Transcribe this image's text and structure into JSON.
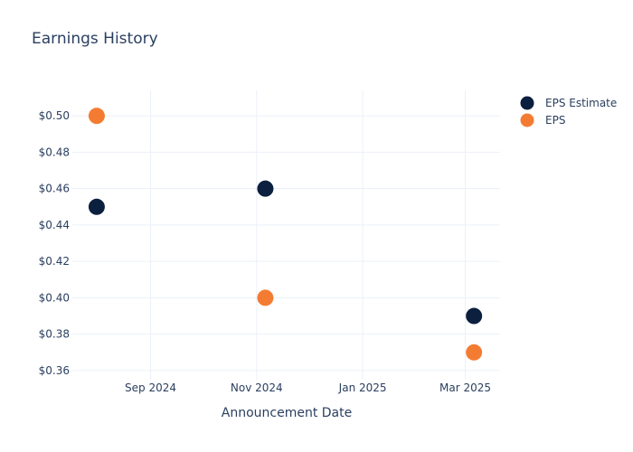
{
  "chart_data": {
    "type": "scatter",
    "title": "Earnings History",
    "xlabel": "Announcement Date",
    "ylabel": "",
    "x_tick_labels": [
      "Sep 2024",
      "Nov 2024",
      "Jan 2025",
      "Mar 2025"
    ],
    "x_tick_dates": [
      "2024-09-01",
      "2024-11-01",
      "2025-01-01",
      "2025-03-01"
    ],
    "x_range": [
      "2024-07-18",
      "2025-03-21"
    ],
    "y_tick_labels": [
      "$0.36",
      "$0.38",
      "$0.40",
      "$0.42",
      "$0.44",
      "$0.46",
      "$0.48",
      "$0.50"
    ],
    "y_ticks": [
      0.36,
      0.38,
      0.4,
      0.42,
      0.44,
      0.46,
      0.48,
      0.5
    ],
    "ylim": [
      0.355,
      0.514
    ],
    "grid": true,
    "legend_position": "top-right",
    "x": [
      "2024-08-01",
      "2024-11-06",
      "2025-03-06"
    ],
    "series": [
      {
        "name": "EPS Estimate",
        "color": "#0b1f3f",
        "values": [
          0.45,
          0.46,
          0.39
        ]
      },
      {
        "name": "EPS",
        "color": "#f47c32",
        "values": [
          0.5,
          0.4,
          0.37
        ]
      }
    ]
  }
}
